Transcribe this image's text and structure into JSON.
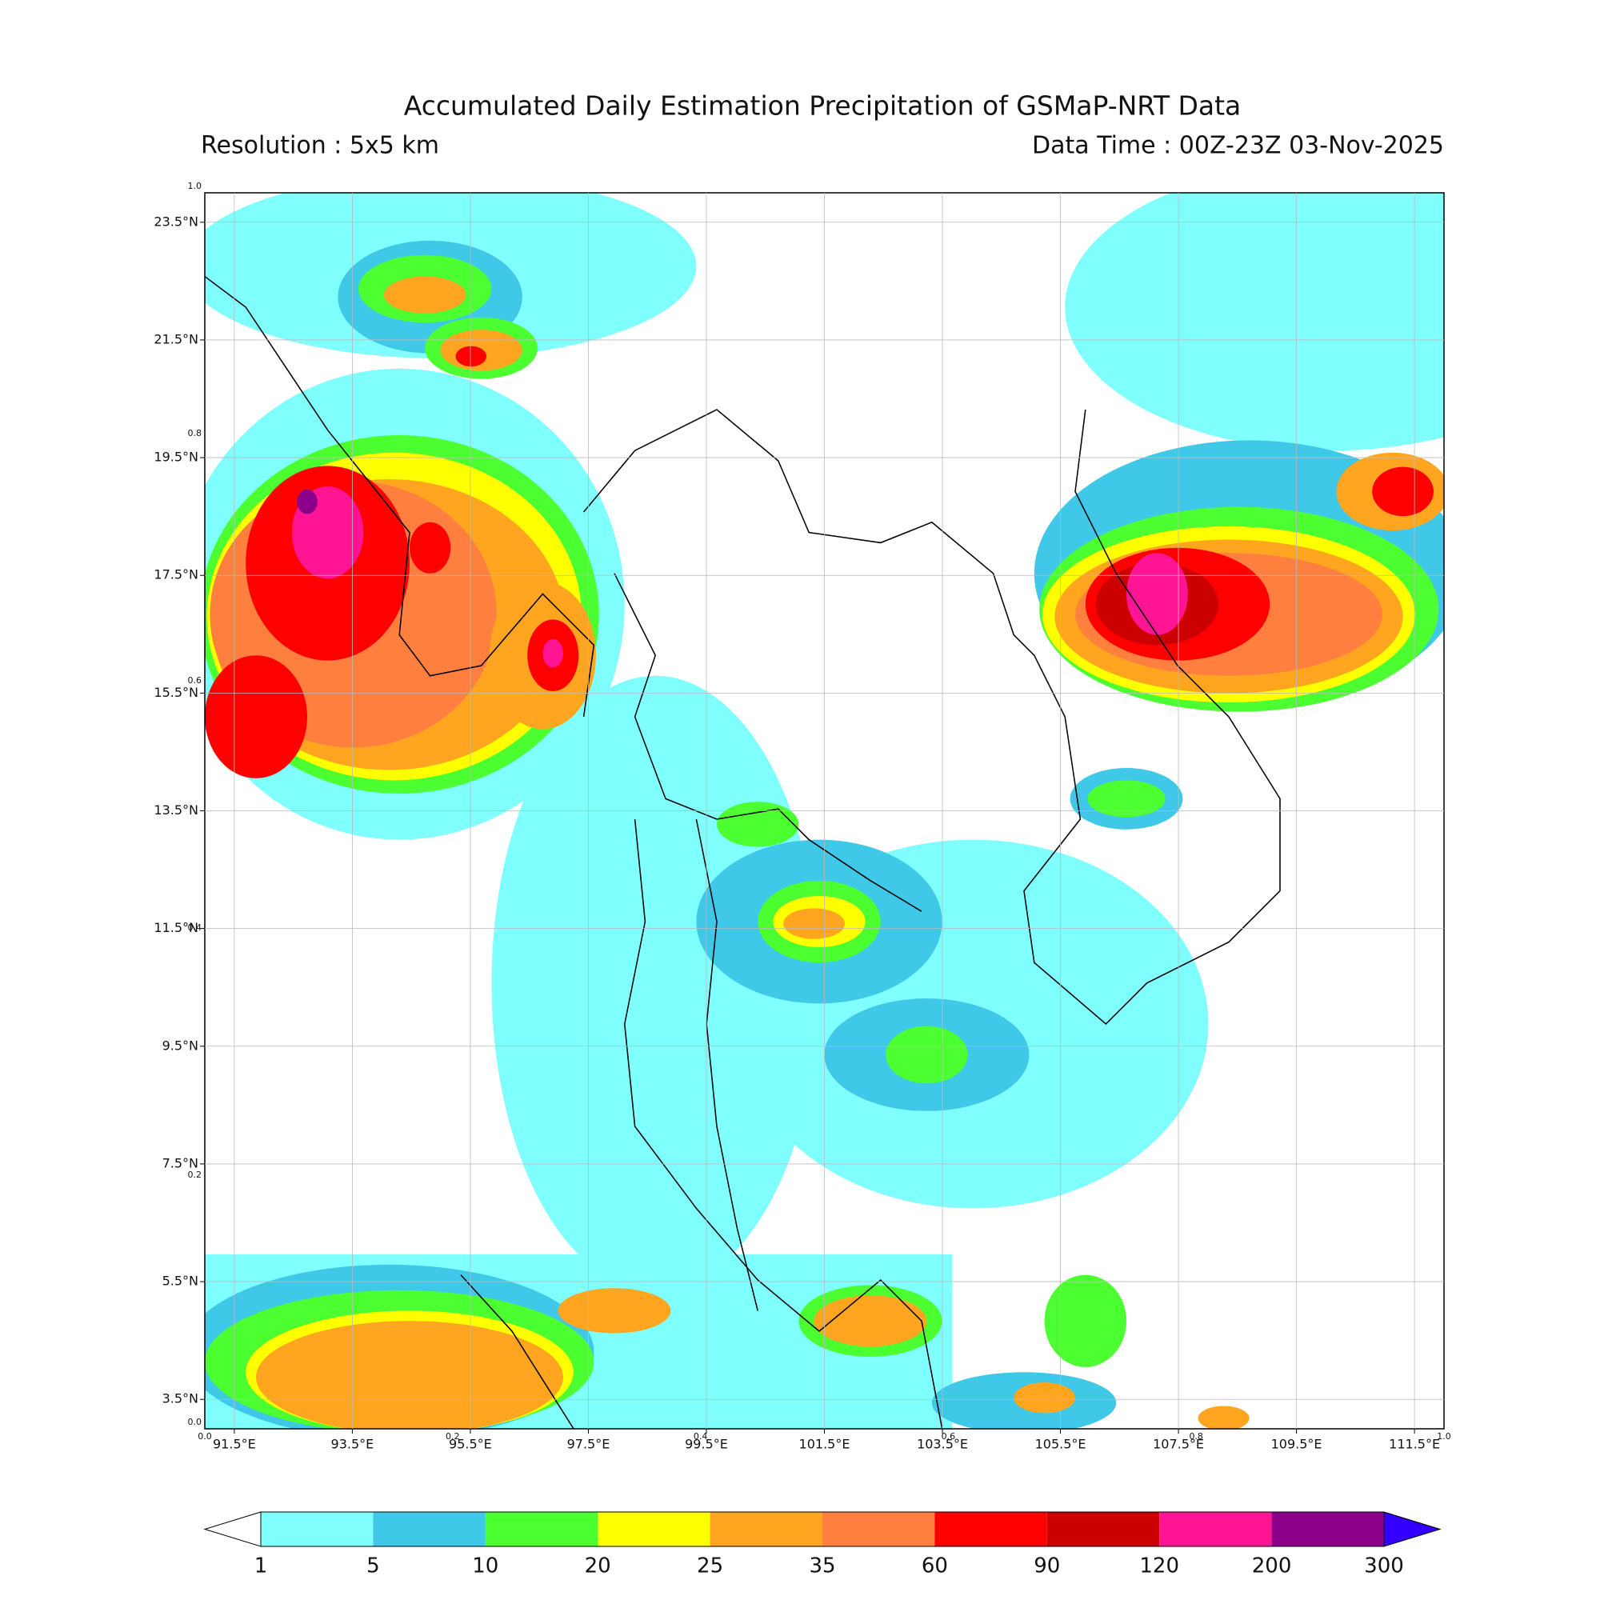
{
  "title": "Accumulated Daily Estimation Precipitation of GSMaP-NRT Data",
  "resolution": "Resolution : 5x5 km",
  "data_time": "Data Time : 00Z-23Z 03-Nov-2025",
  "map": {
    "xlim": [
      91,
      112
    ],
    "ylim": [
      3,
      24
    ],
    "grid": true,
    "xticks": [
      {
        "value": 91.5,
        "label": "91.5°E"
      },
      {
        "value": 93.5,
        "label": "93.5°E"
      },
      {
        "value": 95.5,
        "label": "95.5°E"
      },
      {
        "value": 97.5,
        "label": "97.5°E"
      },
      {
        "value": 99.5,
        "label": "99.5°E"
      },
      {
        "value": 101.5,
        "label": "101.5°E"
      },
      {
        "value": 103.5,
        "label": "103.5°E"
      },
      {
        "value": 105.5,
        "label": "105.5°E"
      },
      {
        "value": 107.5,
        "label": "107.5°E"
      },
      {
        "value": 109.5,
        "label": "109.5°E"
      },
      {
        "value": 111.5,
        "label": "111.5°E"
      }
    ],
    "yticks": [
      {
        "value": 3.5,
        "label": "3.5°N"
      },
      {
        "value": 5.5,
        "label": "5.5°N"
      },
      {
        "value": 7.5,
        "label": "7.5°N"
      },
      {
        "value": 9.5,
        "label": "9.5°N"
      },
      {
        "value": 11.5,
        "label": "11.5°N"
      },
      {
        "value": 13.5,
        "label": "13.5°N"
      },
      {
        "value": 15.5,
        "label": "15.5°N"
      },
      {
        "value": 17.5,
        "label": "17.5°N"
      },
      {
        "value": 19.5,
        "label": "19.5°N"
      },
      {
        "value": 21.5,
        "label": "21.5°N"
      },
      {
        "value": 23.5,
        "label": "23.5°N"
      }
    ],
    "frame_ticks": [
      {
        "value": 0,
        "label": "0.0"
      },
      {
        "value": 0.2,
        "label": "0.2"
      },
      {
        "value": 0.4,
        "label": "0.4"
      },
      {
        "value": 0.6,
        "label": "0.6"
      },
      {
        "value": 0.8,
        "label": "0.8"
      },
      {
        "value": 1,
        "label": "1.0"
      }
    ]
  },
  "colorbar": {
    "levels": [
      1,
      5,
      10,
      20,
      25,
      35,
      60,
      90,
      120,
      200,
      300
    ],
    "colors": [
      "#80ffff",
      "#40c8e8",
      "#4cff30",
      "#ffff00",
      "#ffa520",
      "#ff7f3f",
      "#ff0000",
      "#cc0000",
      "#ff1493",
      "#8b008b"
    ],
    "under_color": "#ffffff",
    "over_color": "#3300ff"
  }
}
